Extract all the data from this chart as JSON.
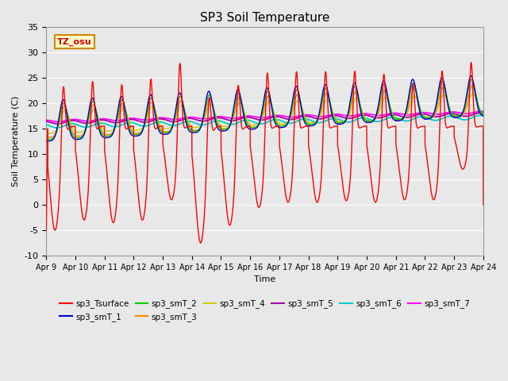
{
  "title": "SP3 Soil Temperature",
  "xlabel": "Time",
  "ylabel": "Soil Temperature (C)",
  "ylim": [
    -10,
    35
  ],
  "xlim": [
    0,
    15
  ],
  "xtick_labels": [
    "Apr 9",
    "Apr 10",
    "Apr 11",
    "Apr 12",
    "Apr 13",
    "Apr 14",
    "Apr 15",
    "Apr 16",
    "Apr 17",
    "Apr 18",
    "Apr 19",
    "Apr 20",
    "Apr 21",
    "Apr 22",
    "Apr 23",
    "Apr 24"
  ],
  "ytick_values": [
    -10,
    -5,
    0,
    5,
    10,
    15,
    20,
    25,
    30,
    35
  ],
  "fig_bg_color": "#e8e8e8",
  "plot_bg_color": "#e8e8e8",
  "grid_color": "#ffffff",
  "annotation_text": "TZ_osu",
  "annotation_color": "#cc0000",
  "annotation_bg": "#ffffcc",
  "annotation_border": "#cc8800",
  "series_colors": {
    "sp3_Tsurface": "#ff0000",
    "sp3_smT_1": "#0000cc",
    "sp3_smT_2": "#00cc00",
    "sp3_smT_3": "#ff8800",
    "sp3_smT_4": "#cccc00",
    "sp3_smT_5": "#aa00aa",
    "sp3_smT_6": "#00cccc",
    "sp3_smT_7": "#ff00ff"
  }
}
